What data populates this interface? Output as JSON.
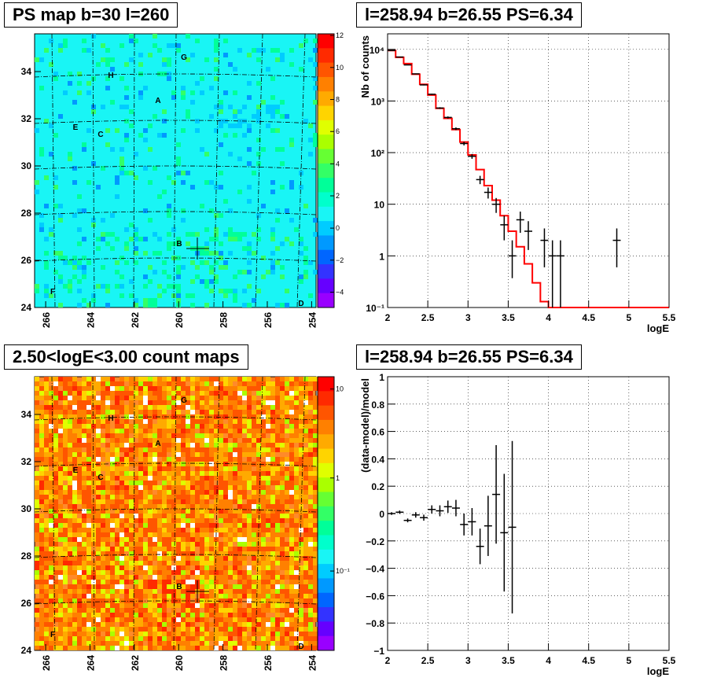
{
  "titles": {
    "ps_map": "PS map b=30 l=260",
    "spectrum": "l=258.94 b=26.55 PS=6.34",
    "count_map": "2.50<logE<3.00 count maps",
    "residual": "l=258.94 b=26.55 PS=6.34"
  },
  "maps": {
    "y_ticks": [
      "24",
      "26",
      "28",
      "30",
      "32",
      "34"
    ],
    "x_ticks": [
      "266",
      "264",
      "262",
      "260",
      "258",
      "256",
      "254"
    ],
    "source_labels": [
      "A",
      "B",
      "C",
      "D",
      "E",
      "F",
      "G",
      "H"
    ],
    "ps_colorbar_ticks": [
      "12",
      "10",
      "8",
      "6",
      "4",
      "2",
      "0",
      "−2",
      "−4"
    ],
    "count_colorbar_ticks": [
      "10",
      "1",
      "10⁻¹"
    ]
  },
  "spectrum_axes": {
    "ylabel": "Nb of counts",
    "xlabel": "logE",
    "x_ticks": [
      "2",
      "2.5",
      "3",
      "3.5",
      "4",
      "4.5",
      "5",
      "5.5"
    ],
    "y_ticks": [
      "10⁻¹",
      "1",
      "10",
      "10²",
      "10³",
      "10⁴"
    ]
  },
  "residual_axes": {
    "ylabel": "(data-model)/model",
    "xlabel": "logE",
    "x_ticks": [
      "2",
      "2.5",
      "3",
      "3.5",
      "4",
      "4.5",
      "5",
      "5.5"
    ],
    "y_ticks": [
      "1",
      "0.8",
      "0.6",
      "0.4",
      "0.2",
      "0",
      "−0.2",
      "−0.4",
      "−0.6",
      "−0.8",
      "−1"
    ]
  },
  "colors": {
    "model_line": "#ff0000",
    "data": "#000000",
    "map_bg": "#19f5f5",
    "count_bg": "#ff8a2a"
  },
  "chart_data": [
    {
      "type": "heatmap",
      "title": "PS map b=30 l=260",
      "x_range": [
        266.5,
        253.8
      ],
      "y_range": [
        24,
        35.6
      ],
      "colorbar_range": [
        -5,
        12
      ],
      "labels": [
        "A",
        "B",
        "C",
        "D",
        "E",
        "F",
        "G",
        "H"
      ],
      "marked_position": {
        "l": 258.94,
        "b": 26.55
      }
    },
    {
      "type": "line",
      "title": "l=258.94 b=26.55 PS=6.34",
      "xlabel": "logE",
      "ylabel": "Nb of counts",
      "y_scale": "log",
      "xlim": [
        2,
        5.5
      ],
      "ylim": [
        0.1,
        20000
      ],
      "grid": true,
      "series": [
        {
          "style": "step",
          "color": "#ff0000",
          "edges": [
            2,
            2.1,
            2.2,
            2.3,
            2.4,
            2.5,
            2.6,
            2.7,
            2.8,
            2.9,
            3.0,
            3.1,
            3.2,
            3.3,
            3.4,
            3.5,
            3.6,
            3.7,
            3.8,
            3.9,
            4.0,
            4.1,
            5.5
          ],
          "values": [
            9500,
            7000,
            5300,
            3300,
            2100,
            1300,
            720,
            460,
            280,
            160,
            90,
            47,
            23,
            12,
            6,
            3,
            1.5,
            0.7,
            0.3,
            0.13,
            0.1,
            0.1
          ]
        },
        {
          "style": "errorbar",
          "color": "#000000",
          "x": [
            2.05,
            2.15,
            2.25,
            2.35,
            2.45,
            2.55,
            2.65,
            2.75,
            2.85,
            2.95,
            3.05,
            3.15,
            3.25,
            3.35,
            3.45,
            3.55,
            3.65,
            3.75,
            3.95,
            4.05,
            4.15,
            4.85
          ],
          "y": [
            9500,
            7100,
            5000,
            3350,
            2050,
            1350,
            730,
            480,
            290,
            150,
            85,
            30,
            17,
            10,
            4,
            1,
            5,
            3,
            2,
            1,
            1,
            2
          ],
          "y_err_low": [
            95,
            85,
            70,
            60,
            45,
            37,
            27,
            22,
            17,
            12,
            9,
            5.5,
            4.1,
            3.2,
            2,
            0.63,
            2.2,
            1.7,
            1.4,
            0.9,
            0.9,
            1.4
          ],
          "y_err_high": [
            95,
            85,
            70,
            60,
            45,
            37,
            27,
            22,
            17,
            12,
            9,
            5.5,
            4.1,
            3.2,
            2,
            1,
            2.2,
            1.7,
            1.4,
            1,
            1,
            1.4
          ]
        }
      ]
    },
    {
      "type": "heatmap",
      "title": "2.50<logE<3.00 count maps",
      "x_range": [
        266.5,
        253.8
      ],
      "y_range": [
        24,
        35.6
      ],
      "colorbar_scale": "log",
      "colorbar_range": [
        0.05,
        15
      ],
      "labels": [
        "A",
        "B",
        "C",
        "D",
        "E",
        "F",
        "G",
        "H"
      ],
      "marked_position": {
        "l": 258.94,
        "b": 26.55
      }
    },
    {
      "type": "scatter",
      "title": "l=258.94 b=26.55 PS=6.34",
      "xlabel": "logE",
      "ylabel": "(data-model)/model",
      "xlim": [
        2,
        5.5
      ],
      "ylim": [
        -1,
        1
      ],
      "grid": true,
      "series": [
        {
          "style": "errorbar",
          "color": "#000000",
          "x": [
            2.05,
            2.15,
            2.25,
            2.35,
            2.45,
            2.55,
            2.65,
            2.75,
            2.85,
            2.95,
            3.05,
            3.15,
            3.25,
            3.35,
            3.45,
            3.55
          ],
          "y": [
            0.0,
            0.01,
            -0.05,
            -0.01,
            -0.03,
            0.03,
            0.02,
            0.05,
            0.04,
            -0.08,
            -0.06,
            -0.24,
            -0.09,
            0.14,
            -0.14,
            -0.1
          ],
          "y_err": [
            0.01,
            0.012,
            0.014,
            0.02,
            0.022,
            0.03,
            0.04,
            0.045,
            0.06,
            0.08,
            0.1,
            0.13,
            0.22,
            0.36,
            0.43,
            0.63
          ]
        }
      ]
    }
  ]
}
